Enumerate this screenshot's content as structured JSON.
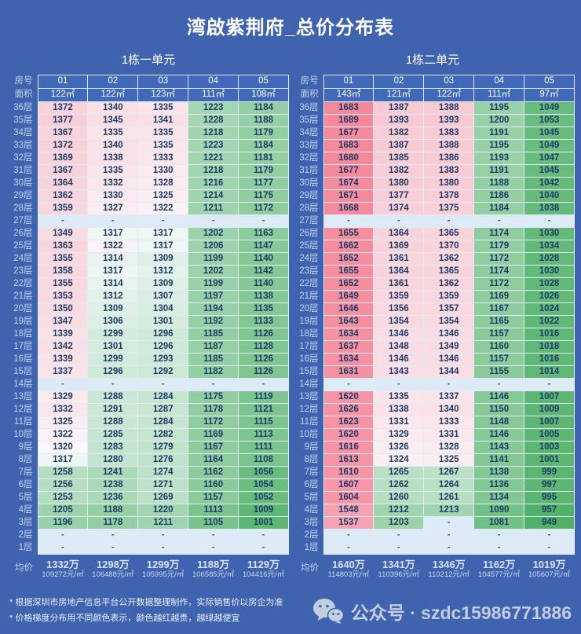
{
  "title": "湾啟紫荆府_总价分布表",
  "chart_data": {
    "type": "heatmap-table",
    "value_meaning": "总价(万)",
    "color_scale": {
      "min": 949,
      "mid": 1319,
      "max": 1689,
      "min_color": "#4FB167",
      "mid_color": "#FBFDFF",
      "max_color": "#F5889A",
      "dash_bg": "#DDEBF7"
    },
    "tables": [
      {
        "unit_title": "1栋一单元",
        "room_header_label": "房号",
        "area_header_label": "面积",
        "avg_label": "均价",
        "room_numbers": [
          "01",
          "02",
          "03",
          "04",
          "05"
        ],
        "areas": [
          "122㎡",
          "122㎡",
          "123㎡",
          "111㎡",
          "108㎡"
        ],
        "rows": [
          {
            "floor": "36层",
            "values": [
              1372,
              1340,
              1335,
              1223,
              1184
            ]
          },
          {
            "floor": "35层",
            "values": [
              1377,
              1345,
              1341,
              1228,
              1188
            ]
          },
          {
            "floor": "34层",
            "values": [
              1367,
              1335,
              1335,
              1218,
              1179
            ]
          },
          {
            "floor": "33层",
            "values": [
              1372,
              1340,
              1335,
              1223,
              1184
            ]
          },
          {
            "floor": "32层",
            "values": [
              1369,
              1338,
              1333,
              1221,
              1181
            ]
          },
          {
            "floor": "31层",
            "values": [
              1367,
              1335,
              1330,
              1218,
              1179
            ]
          },
          {
            "floor": "30层",
            "values": [
              1364,
              1332,
              1328,
              1216,
              1177
            ]
          },
          {
            "floor": "29层",
            "values": [
              1362,
              1330,
              1325,
              1214,
              1175
            ]
          },
          {
            "floor": "28层",
            "values": [
              1359,
              1327,
              1322,
              1211,
              1172
            ]
          },
          {
            "floor": "27层",
            "values": [
              "-",
              "-",
              "-",
              "-",
              "-"
            ]
          },
          {
            "floor": "26层",
            "values": [
              1349,
              1317,
              1317,
              1202,
              1163
            ]
          },
          {
            "floor": "25层",
            "values": [
              1363,
              1322,
              1317,
              1206,
              1147
            ]
          },
          {
            "floor": "24层",
            "values": [
              1355,
              1314,
              1309,
              1199,
              1140
            ]
          },
          {
            "floor": "23层",
            "values": [
              1358,
              1317,
              1312,
              1202,
              1142
            ]
          },
          {
            "floor": "22层",
            "values": [
              1355,
              1314,
              1309,
              1199,
              1140
            ]
          },
          {
            "floor": "21层",
            "values": [
              1353,
              1312,
              1307,
              1197,
              1138
            ]
          },
          {
            "floor": "20层",
            "values": [
              1350,
              1309,
              1304,
              1194,
              1135
            ]
          },
          {
            "floor": "19层",
            "values": [
              1347,
              1306,
              1301,
              1192,
              1133
            ]
          },
          {
            "floor": "18层",
            "values": [
              1339,
              1299,
              1296,
              1185,
              1126
            ]
          },
          {
            "floor": "17层",
            "values": [
              1342,
              1301,
              1296,
              1187,
              1128
            ]
          },
          {
            "floor": "16层",
            "values": [
              1339,
              1299,
              1293,
              1185,
              1126
            ]
          },
          {
            "floor": "15层",
            "values": [
              1337,
              1296,
              1292,
              1182,
              1126
            ]
          },
          {
            "floor": "14层",
            "values": [
              "-",
              "-",
              "-",
              "-",
              "-"
            ]
          },
          {
            "floor": "13层",
            "values": [
              1329,
              1288,
              1284,
              1175,
              1119
            ]
          },
          {
            "floor": "12层",
            "values": [
              1332,
              1291,
              1287,
              1178,
              1121
            ]
          },
          {
            "floor": "11层",
            "values": [
              1325,
              1288,
              1284,
              1172,
              1115
            ]
          },
          {
            "floor": "10层",
            "values": [
              1322,
              1285,
              1282,
              1169,
              1113
            ]
          },
          {
            "floor": "9层",
            "values": [
              1320,
              1283,
              1279,
              1167,
              1111
            ]
          },
          {
            "floor": "8层",
            "values": [
              1317,
              1280,
              1276,
              1164,
              1108
            ]
          },
          {
            "floor": "7层",
            "values": [
              1258,
              1241,
              1274,
              1162,
              1056
            ]
          },
          {
            "floor": "6层",
            "values": [
              1256,
              1238,
              1271,
              1160,
              1054
            ]
          },
          {
            "floor": "5层",
            "values": [
              1253,
              1236,
              1269,
              1157,
              1052
            ]
          },
          {
            "floor": "4层",
            "values": [
              1205,
              1188,
              1220,
              1113,
              1009
            ]
          },
          {
            "floor": "3层",
            "values": [
              1196,
              1178,
              1211,
              1105,
              1001
            ]
          },
          {
            "floor": "2层",
            "values": [
              "-",
              "-",
              "-",
              "-",
              "-"
            ]
          },
          {
            "floor": "1层",
            "values": [
              "-",
              "-",
              "-",
              "-",
              "-"
            ]
          }
        ],
        "averages": [
          {
            "total": "1332万",
            "per_sqm": "109272元/㎡"
          },
          {
            "total": "1298万",
            "per_sqm": "106488元/㎡"
          },
          {
            "total": "1299万",
            "per_sqm": "105995元/㎡"
          },
          {
            "total": "1188万",
            "per_sqm": "106585元/㎡"
          },
          {
            "total": "1129万",
            "per_sqm": "104416元/㎡"
          }
        ]
      },
      {
        "unit_title": "1栋二单元",
        "room_header_label": "房号",
        "area_header_label": "面积",
        "avg_label": "均价",
        "room_numbers": [
          "01",
          "02",
          "03",
          "04",
          "05"
        ],
        "areas": [
          "143㎡",
          "121㎡",
          "122㎡",
          "111㎡",
          "97㎡"
        ],
        "rows": [
          {
            "floor": "36层",
            "values": [
              1683,
              1387,
              1388,
              1195,
              1049
            ]
          },
          {
            "floor": "35层",
            "values": [
              1689,
              1393,
              1393,
              1200,
              1053
            ]
          },
          {
            "floor": "34层",
            "values": [
              1677,
              1382,
              1383,
              1191,
              1045
            ]
          },
          {
            "floor": "33层",
            "values": [
              1683,
              1387,
              1388,
              1195,
              1049
            ]
          },
          {
            "floor": "32层",
            "values": [
              1680,
              1385,
              1386,
              1193,
              1047
            ]
          },
          {
            "floor": "31层",
            "values": [
              1677,
              1382,
              1383,
              1191,
              1045
            ]
          },
          {
            "floor": "30层",
            "values": [
              1674,
              1380,
              1380,
              1188,
              1042
            ]
          },
          {
            "floor": "29层",
            "values": [
              1671,
              1377,
              1378,
              1186,
              1040
            ]
          },
          {
            "floor": "28层",
            "values": [
              1668,
              1374,
              1375,
              1184,
              1038
            ]
          },
          {
            "floor": "27层",
            "values": [
              "-",
              "-",
              "-",
              "-",
              "-"
            ]
          },
          {
            "floor": "26层",
            "values": [
              1655,
              1364,
              1365,
              1174,
              1030
            ]
          },
          {
            "floor": "25层",
            "values": [
              1662,
              1369,
              1370,
              1179,
              1034
            ]
          },
          {
            "floor": "24层",
            "values": [
              1652,
              1361,
              1362,
              1172,
              1028
            ]
          },
          {
            "floor": "23层",
            "values": [
              1655,
              1364,
              1365,
              1174,
              1030
            ]
          },
          {
            "floor": "22层",
            "values": [
              1652,
              1361,
              1362,
              1172,
              1028
            ]
          },
          {
            "floor": "21层",
            "values": [
              1649,
              1359,
              1359,
              1169,
              1026
            ]
          },
          {
            "floor": "20层",
            "values": [
              1646,
              1356,
              1357,
              1167,
              1024
            ]
          },
          {
            "floor": "19层",
            "values": [
              1643,
              1354,
              1354,
              1165,
              1022
            ]
          },
          {
            "floor": "18层",
            "values": [
              1634,
              1346,
              1346,
              1157,
              1016
            ]
          },
          {
            "floor": "17层",
            "values": [
              1637,
              1348,
              1349,
              1160,
              1018
            ]
          },
          {
            "floor": "16层",
            "values": [
              1634,
              1346,
              1346,
              1157,
              1016
            ]
          },
          {
            "floor": "15层",
            "values": [
              1631,
              1343,
              1344,
              1155,
              1014
            ]
          },
          {
            "floor": "14层",
            "values": [
              "-",
              "-",
              "-",
              "-",
              "-"
            ]
          },
          {
            "floor": "13层",
            "values": [
              1620,
              1335,
              1337,
              1146,
              1007
            ]
          },
          {
            "floor": "12层",
            "values": [
              1626,
              1338,
              1340,
              1150,
              1009
            ]
          },
          {
            "floor": "11层",
            "values": [
              1623,
              1331,
              1333,
              1148,
              1007
            ]
          },
          {
            "floor": "10层",
            "values": [
              1620,
              1329,
              1331,
              1146,
              1005
            ]
          },
          {
            "floor": "9层",
            "values": [
              1616,
              1326,
              1328,
              1143,
              1003
            ]
          },
          {
            "floor": "8层",
            "values": [
              1613,
              1324,
              1325,
              1141,
              1001
            ]
          },
          {
            "floor": "7层",
            "values": [
              1610,
              1265,
              1267,
              1138,
              999
            ]
          },
          {
            "floor": "6层",
            "values": [
              1607,
              1262,
              1264,
              1136,
              997
            ]
          },
          {
            "floor": "5层",
            "values": [
              1604,
              1260,
              1261,
              1134,
              995
            ]
          },
          {
            "floor": "4层",
            "values": [
              1548,
              1212,
              1213,
              1090,
              957
            ]
          },
          {
            "floor": "3层",
            "values": [
              1537,
              1203,
              "-",
              1081,
              949
            ]
          },
          {
            "floor": "2层",
            "values": [
              "-",
              "-",
              "-",
              "-",
              "-"
            ]
          },
          {
            "floor": "1层",
            "values": [
              "-",
              "-",
              "-",
              "-",
              "-"
            ]
          }
        ],
        "averages": [
          {
            "total": "1640万",
            "per_sqm": "114803元/㎡"
          },
          {
            "total": "1341万",
            "per_sqm": "110396元/㎡"
          },
          {
            "total": "1346万",
            "per_sqm": "110212元/㎡"
          },
          {
            "total": "1162万",
            "per_sqm": "104577元/㎡"
          },
          {
            "total": "1019万",
            "per_sqm": "105607元/㎡"
          }
        ]
      }
    ]
  },
  "footnotes": [
    "* 根据深圳市房地产信息平台公开数据整理制作，实际销售价以房企为准",
    "* 价格梯度分布用不同颜色表示，颜色越红越贵，越绿越便宜"
  ],
  "footer": {
    "label": "公众号 · szdc15986771886",
    "icon": "wechat-icon"
  },
  "colors": {
    "background": "#3F63AE",
    "header_cell_bg": "#4169B9",
    "cell_text": "#1E3A66",
    "floor_label_text": "#C3D4EE",
    "footer_text": "#C3CDE0"
  }
}
